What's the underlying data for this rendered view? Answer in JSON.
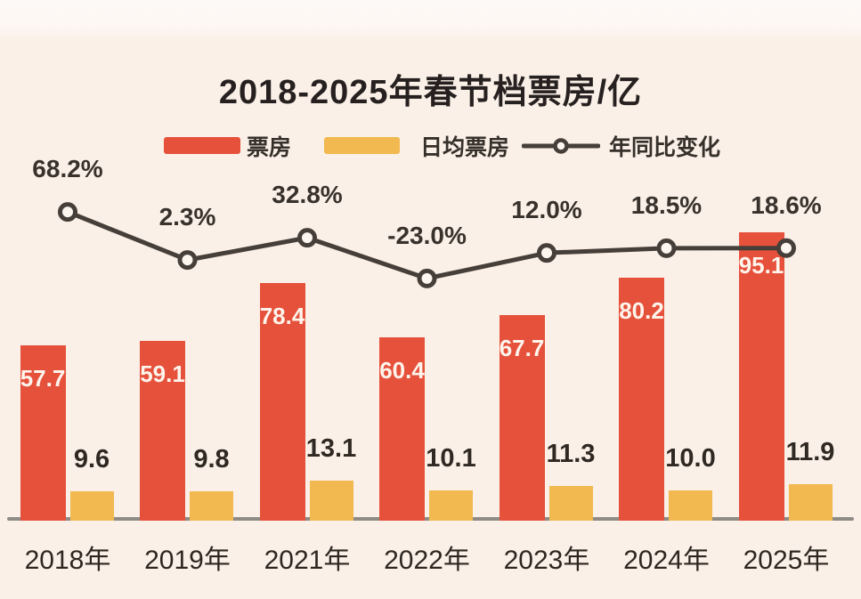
{
  "chart_data": {
    "type": "bar+line",
    "title": "2018-2025年春节档票房/亿",
    "categories": [
      "2018年",
      "2019年",
      "2021年",
      "2022年",
      "2023年",
      "2024年",
      "2025年"
    ],
    "series": [
      {
        "name": "票房",
        "type": "bar",
        "color": "#e6513b",
        "values": [
          57.7,
          59.1,
          78.4,
          60.4,
          67.7,
          80.2,
          95.1
        ],
        "labels": [
          "57.7",
          "59.1",
          "78.4",
          "60.4",
          "67.7",
          "80.2",
          "95.1"
        ]
      },
      {
        "name": "日均票房",
        "type": "bar",
        "color": "#f1b94f",
        "values": [
          9.6,
          9.8,
          13.1,
          10.1,
          11.3,
          10.0,
          11.9
        ],
        "labels": [
          "9.6",
          "9.8",
          "13.1",
          "10.1",
          "11.3",
          "10.0",
          "11.9"
        ]
      },
      {
        "name": "年同比变化",
        "type": "line",
        "color": "#463e39",
        "marker_fill": "#fcf6ef",
        "unit": "%",
        "values": [
          68.2,
          2.3,
          32.8,
          -23.0,
          12.0,
          18.5,
          18.6
        ],
        "labels": [
          "68.2%",
          "2.3%",
          "32.8%",
          "-23.0%",
          "12.0%",
          "18.5%",
          "18.6%"
        ]
      }
    ],
    "legend_position": "top",
    "grid": false,
    "value_labels_shown": true,
    "y_axis_shown": false,
    "bar_value_range": [
      0,
      100
    ]
  },
  "colors": {
    "background": "#faf0e7",
    "top_band": "#fdf9f6",
    "axis_line": "#8e8b86",
    "bar_value_text_light": "#fdf4ec",
    "text_dark": "#2e2823"
  }
}
